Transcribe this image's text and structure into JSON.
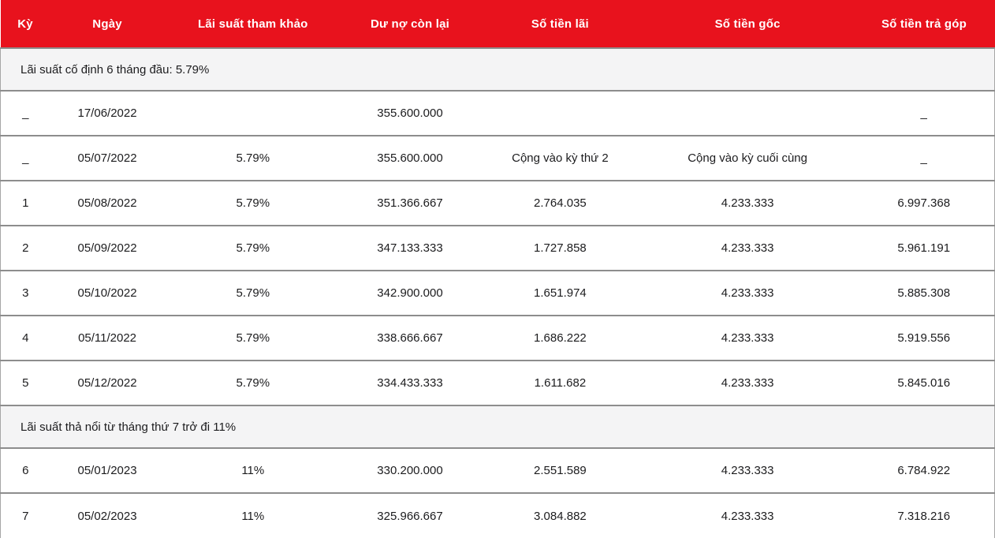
{
  "colors": {
    "header_bg": "#e8121d",
    "header_text": "#ffffff",
    "row_divider": "#8d8d8d",
    "side_border": "#a6a6a6",
    "section_bg": "#f4f4f5",
    "body_text": "#1c1c1e"
  },
  "table": {
    "columns": [
      {
        "key": "ky",
        "label": "Kỳ"
      },
      {
        "key": "ngay",
        "label": "Ngày"
      },
      {
        "key": "lai-suat-tham-khao",
        "label": "Lãi suất tham khảo"
      },
      {
        "key": "du-no-con-lai",
        "label": "Dư nợ còn lại"
      },
      {
        "key": "so-tien-lai",
        "label": "Số tiền lãi"
      },
      {
        "key": "so-tien-goc",
        "label": "Số tiền gốc"
      },
      {
        "key": "so-tien-tra-gop",
        "label": "Số tiền trả góp"
      }
    ],
    "rows": [
      {
        "type": "section",
        "label": "Lãi suất cố định 6 tháng đầu: 5.79%"
      },
      {
        "type": "data",
        "cells": [
          "_",
          "17/06/2022",
          "",
          "355.600.000",
          "",
          "",
          "_"
        ]
      },
      {
        "type": "data",
        "cells": [
          "_",
          "05/07/2022",
          "5.79%",
          "355.600.000",
          "Cộng vào kỳ thứ 2",
          "Cộng vào kỳ cuối cùng",
          "_"
        ]
      },
      {
        "type": "data",
        "cells": [
          "1",
          "05/08/2022",
          "5.79%",
          "351.366.667",
          "2.764.035",
          "4.233.333",
          "6.997.368"
        ]
      },
      {
        "type": "data",
        "cells": [
          "2",
          "05/09/2022",
          "5.79%",
          "347.133.333",
          "1.727.858",
          "4.233.333",
          "5.961.191"
        ]
      },
      {
        "type": "data",
        "cells": [
          "3",
          "05/10/2022",
          "5.79%",
          "342.900.000",
          "1.651.974",
          "4.233.333",
          "5.885.308"
        ]
      },
      {
        "type": "data",
        "cells": [
          "4",
          "05/11/2022",
          "5.79%",
          "338.666.667",
          "1.686.222",
          "4.233.333",
          "5.919.556"
        ]
      },
      {
        "type": "data",
        "cells": [
          "5",
          "05/12/2022",
          "5.79%",
          "334.433.333",
          "1.611.682",
          "4.233.333",
          "5.845.016"
        ]
      },
      {
        "type": "section",
        "label": "Lãi suất thả nổi từ tháng thứ 7 trở đi 11%"
      },
      {
        "type": "data",
        "cells": [
          "6",
          "05/01/2023",
          "11%",
          "330.200.000",
          "2.551.589",
          "4.233.333",
          "6.784.922"
        ]
      },
      {
        "type": "data",
        "cells": [
          "7",
          "05/02/2023",
          "11%",
          "325.966.667",
          "3.084.882",
          "4.233.333",
          "7.318.216"
        ]
      }
    ]
  }
}
